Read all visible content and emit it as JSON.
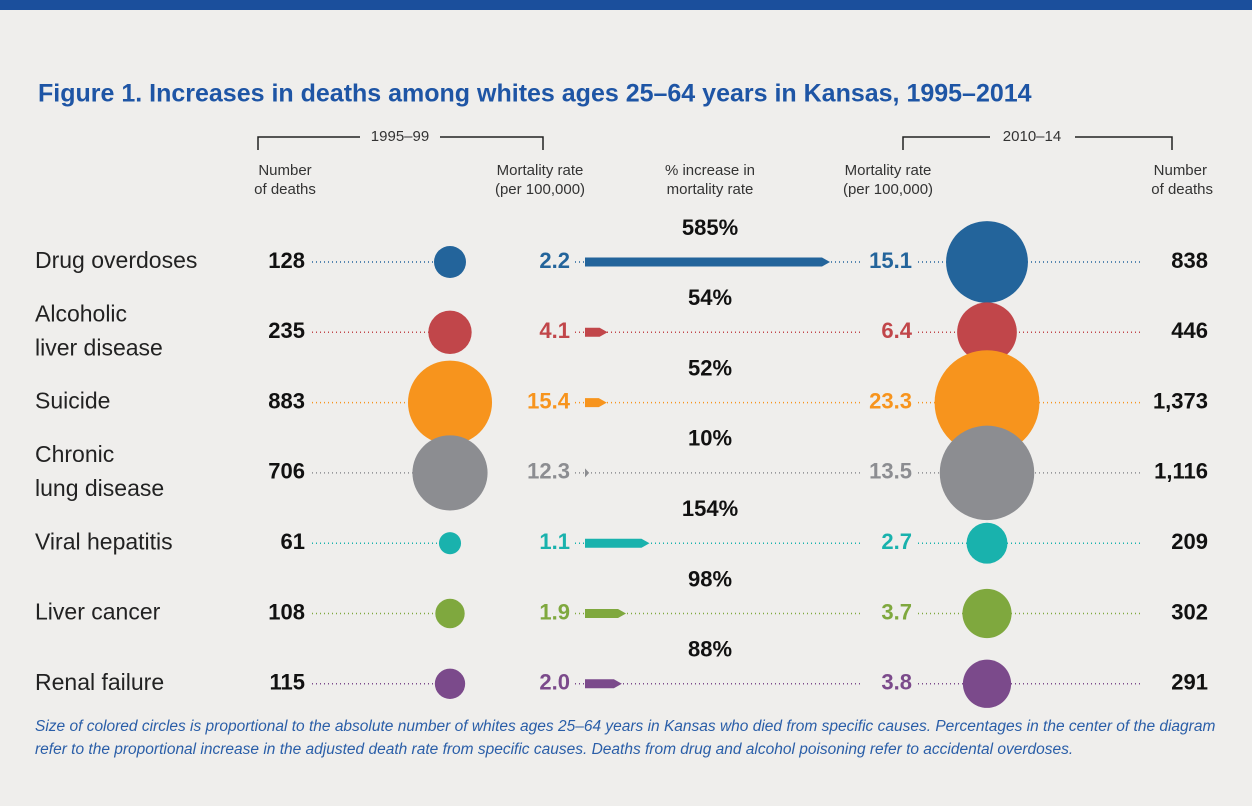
{
  "title": "Figure 1. Increases in deaths among whites ages 25–64 years in Kansas, 1995–2014",
  "periods": [
    "1995–99",
    "2010–14"
  ],
  "header": {
    "deaths": [
      "Number",
      "of deaths"
    ],
    "rate": [
      "Mortality rate",
      "(per 100,000)"
    ],
    "increase": [
      "% increase in",
      "mortality rate"
    ]
  },
  "rows": [
    {
      "cause": [
        "Drug overdoses"
      ],
      "color": "#23649b",
      "deaths_1": 128,
      "rate_1": 2.2,
      "increase": 585,
      "increase_label": "585%",
      "rate_2": 15.1,
      "deaths_2": 838
    },
    {
      "cause": [
        "Alcoholic",
        "liver disease"
      ],
      "color": "#c1464a",
      "deaths_1": 235,
      "rate_1": 4.1,
      "increase": 54,
      "increase_label": "54%",
      "rate_2": 6.4,
      "deaths_2": 446
    },
    {
      "cause": [
        "Suicide"
      ],
      "color": "#f7941d",
      "deaths_1": 883,
      "rate_1": 15.4,
      "increase": 52,
      "increase_label": "52%",
      "rate_2": 23.3,
      "deaths_2": 1373,
      "deaths_2_label": "1,373"
    },
    {
      "cause": [
        "Chronic",
        "lung disease"
      ],
      "color": "#8c8d91",
      "deaths_1": 706,
      "rate_1": 12.3,
      "increase": 10,
      "increase_label": "10%",
      "rate_2": 13.5,
      "deaths_2": 1116,
      "deaths_2_label": "1,116"
    },
    {
      "cause": [
        "Viral hepatitis"
      ],
      "color": "#19b2ad",
      "deaths_1": 61,
      "rate_1": 1.1,
      "increase": 154,
      "increase_label": "154%",
      "rate_2": 2.7,
      "deaths_2": 209
    },
    {
      "cause": [
        "Liver cancer"
      ],
      "color": "#7fa83e",
      "deaths_1": 108,
      "rate_1": 1.9,
      "increase": 98,
      "increase_label": "98%",
      "rate_2": 3.7,
      "deaths_2": 302
    },
    {
      "cause": [
        "Renal failure"
      ],
      "color": "#7b4a8b",
      "deaths_1": 115,
      "rate_1": 2,
      "rate_1_label": "2.0",
      "increase": 88,
      "increase_label": "88%",
      "rate_2": 3.8,
      "deaths_2": 291
    }
  ],
  "footnote": "Size of colored circles is proportional to the absolute number of whites ages 25–64 years in Kansas who died from specific causes. Percentages in the center of the diagram refer to the proportional increase in the adjusted death rate from specific causes. Deaths from drug and alcohol poisoning refer to accidental overdoses."
}
